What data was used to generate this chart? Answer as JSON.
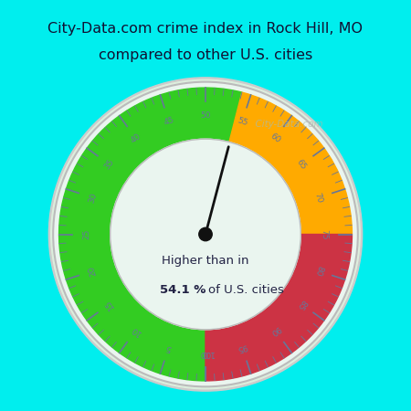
{
  "title_line1": "City-Data.com crime index in Rock Hill, MO",
  "title_line2": "compared to other U.S. cities",
  "title_fontsize": 11.5,
  "title_color": "#111133",
  "background_color": "#00EEEE",
  "gauge_bg_color": "#eaf5ef",
  "gauge_bg_outer": "#ddeedd",
  "value": 54.1,
  "text_line1": "Higher than in",
  "text_line2": "54.1 %",
  "text_line3": "of U.S. cities",
  "green_color": "#33cc22",
  "orange_color": "#ffaa00",
  "red_color": "#cc3344",
  "needle_color": "#111111",
  "tick_color": "#667799",
  "border_outer_color": "#cccccc",
  "border_inner_color": "#cccccc",
  "watermark": "  City-Data.com",
  "watermark_color": "#aabbaa"
}
